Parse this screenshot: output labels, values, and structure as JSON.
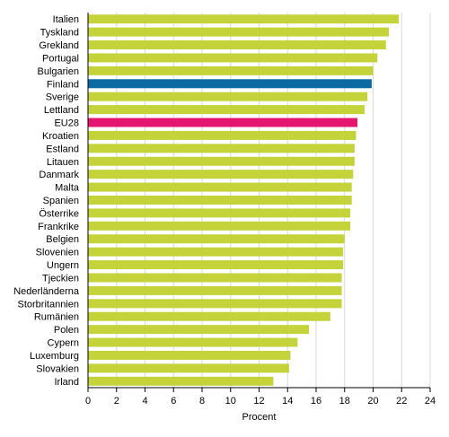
{
  "chart_data": {
    "type": "bar",
    "orientation": "horizontal",
    "categories": [
      "Italien",
      "Tyskland",
      "Grekland",
      "Portugal",
      "Bulgarien",
      "Finland",
      "Sverige",
      "Lettland",
      "EU28",
      "Kroatien",
      "Estland",
      "Litauen",
      "Danmark",
      "Malta",
      "Spanien",
      "Österrike",
      "Frankrike",
      "Belgien",
      "Slovenien",
      "Ungern",
      "Tjeckien",
      "Nederländerna",
      "Storbritannien",
      "Rumänien",
      "Polen",
      "Cypern",
      "Luxemburg",
      "Slovakien",
      "Irland"
    ],
    "values": [
      21.8,
      21.1,
      20.9,
      20.3,
      20.0,
      19.9,
      19.6,
      19.4,
      18.9,
      18.8,
      18.7,
      18.7,
      18.6,
      18.5,
      18.5,
      18.4,
      18.4,
      18.0,
      17.9,
      17.9,
      17.8,
      17.8,
      17.8,
      17.0,
      15.5,
      14.7,
      14.2,
      14.1,
      13.0
    ],
    "highlight": {
      "Finland": "#0a6aa1",
      "EU28": "#e4166f"
    },
    "default_color": "#c3d339",
    "xlabel": "Procent",
    "xlim": [
      0,
      24
    ],
    "xticks": [
      0,
      2,
      4,
      6,
      8,
      10,
      12,
      14,
      16,
      18,
      20,
      22,
      24
    ],
    "grid": true,
    "grid_axis": "x"
  }
}
